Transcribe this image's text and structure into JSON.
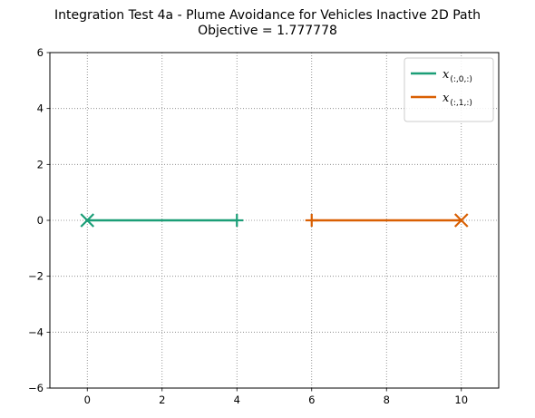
{
  "chart_data": {
    "type": "line",
    "title": "Integration Test 4a - Plume Avoidance for Vehicles Inactive 2D Path",
    "subtitle": "Objective = 1.777778",
    "xlabel": "",
    "ylabel": "",
    "xlim": [
      -1,
      11
    ],
    "ylim": [
      -6,
      6
    ],
    "xticks": [
      0,
      2,
      4,
      6,
      8,
      10
    ],
    "yticks": [
      -6,
      -4,
      -2,
      0,
      2,
      4,
      6
    ],
    "xtick_labels": [
      "0",
      "2",
      "4",
      "6",
      "8",
      "10"
    ],
    "ytick_labels": [
      "−6",
      "−4",
      "−2",
      "0",
      "2",
      "4",
      "6"
    ],
    "grid": true,
    "legend_position": "top-right",
    "series": [
      {
        "name": "x",
        "name_sub": "(:,0,:)",
        "color": "#1b9e77",
        "x": [
          0,
          4
        ],
        "y": [
          0,
          0
        ],
        "start_marker": "x",
        "end_marker": "+"
      },
      {
        "name": "x",
        "name_sub": "(:,1,:)",
        "color": "#d95f02",
        "x": [
          6,
          10
        ],
        "y": [
          0,
          0
        ],
        "start_marker": "+",
        "end_marker": "x"
      }
    ]
  }
}
